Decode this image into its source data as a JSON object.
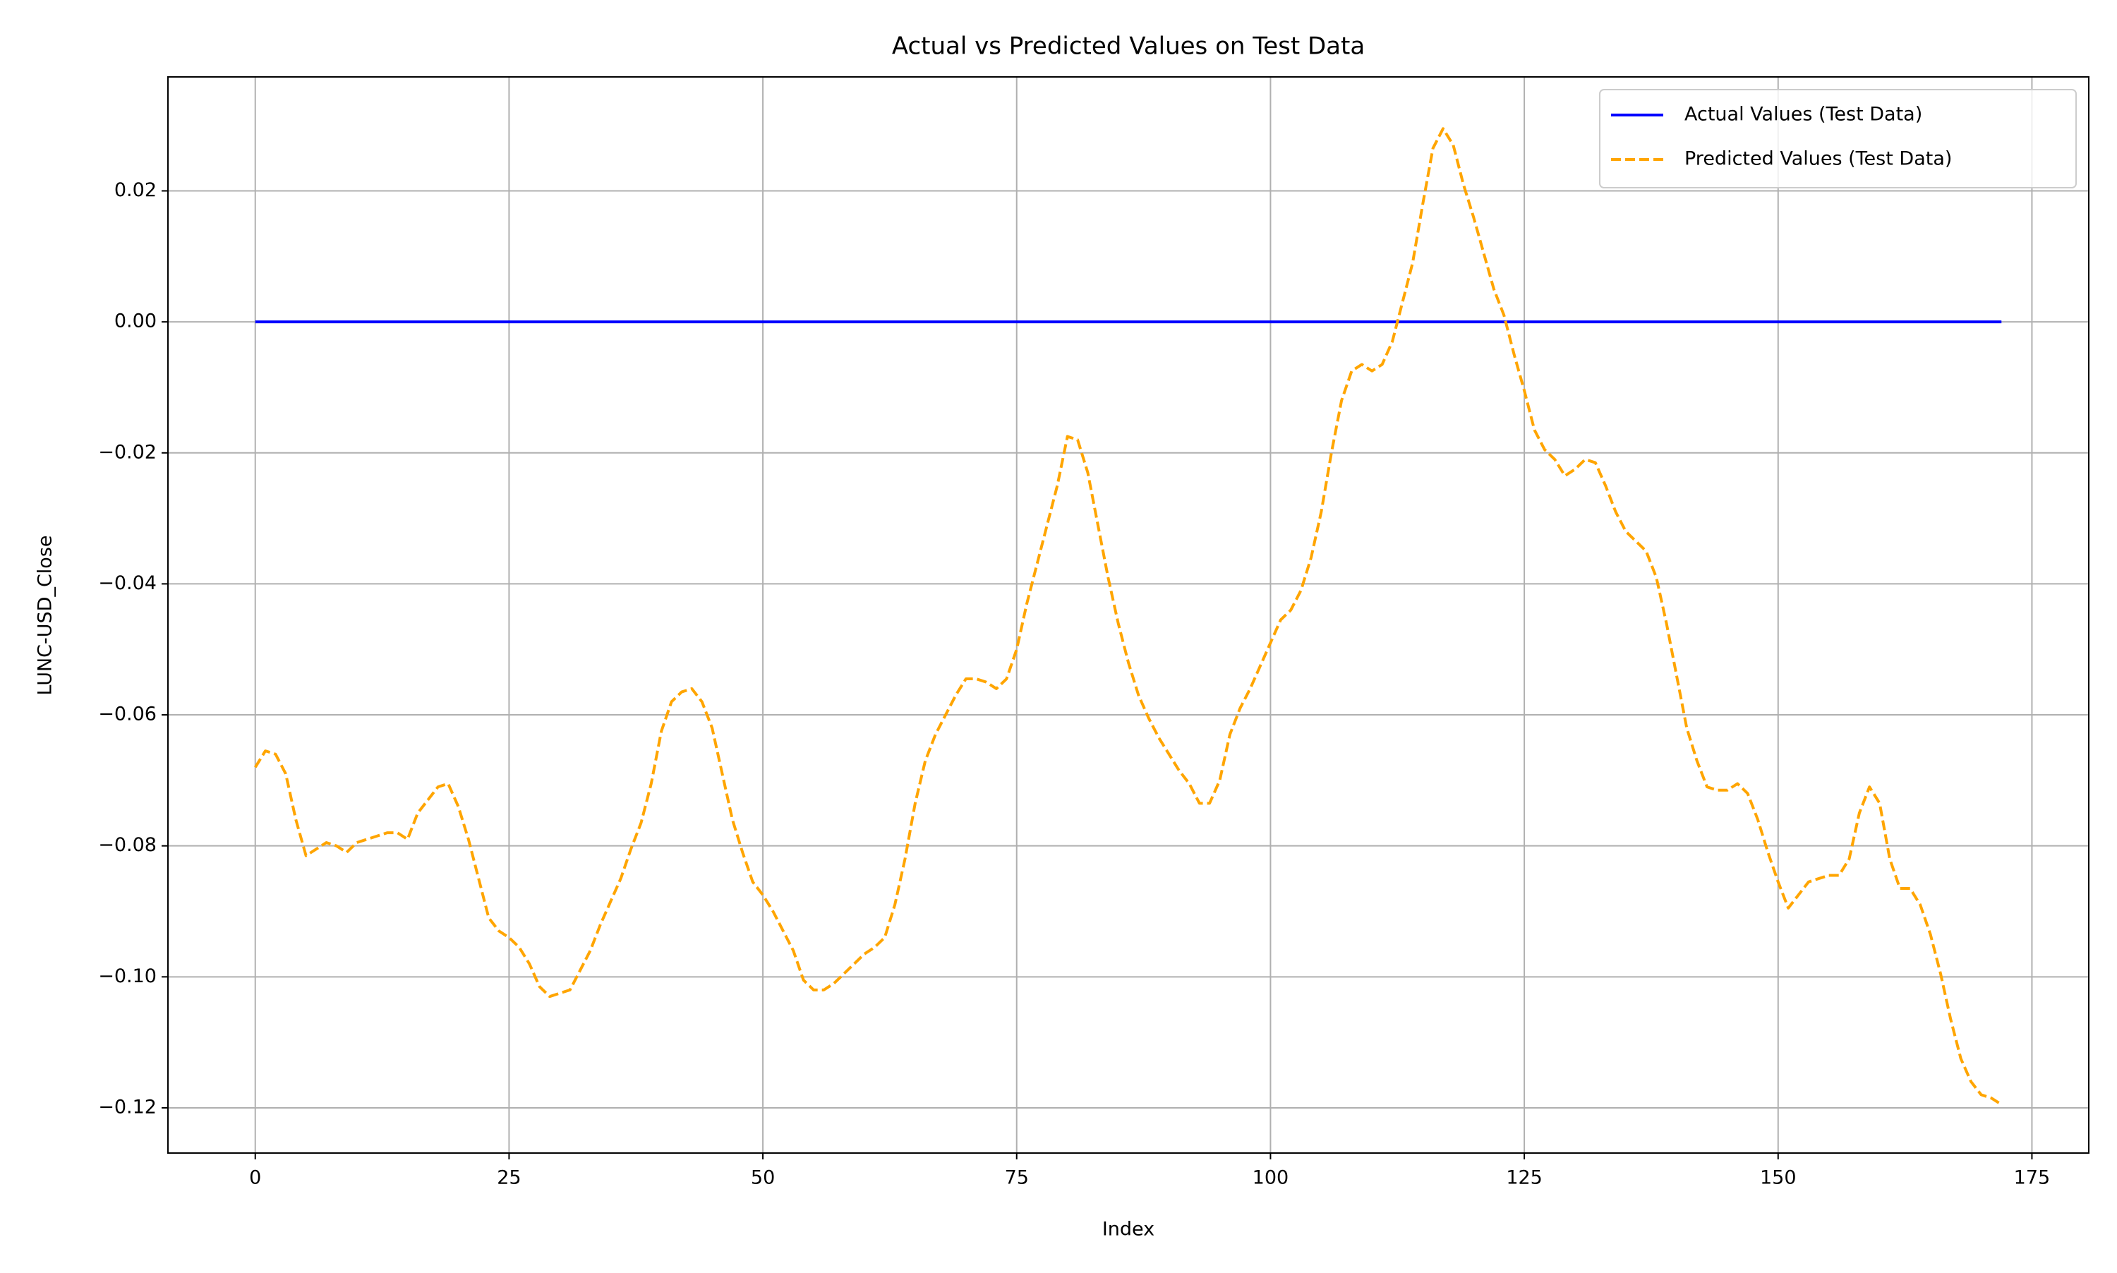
{
  "chart_data": {
    "type": "line",
    "title": "Actual vs Predicted Values on Test Data",
    "x_label": "Index",
    "y_label": "LUNC-USD_Close",
    "xlim": [
      -8.6,
      180.6
    ],
    "ylim": [
      -0.1269,
      0.0374
    ],
    "xticks": [
      0,
      25,
      50,
      75,
      100,
      125,
      150,
      175
    ],
    "yticks": [
      {
        "value": -0.12,
        "label": "−0.12"
      },
      {
        "value": -0.1,
        "label": "−0.10"
      },
      {
        "value": -0.08,
        "label": "−0.08"
      },
      {
        "value": -0.06,
        "label": "−0.06"
      },
      {
        "value": -0.04,
        "label": "−0.04"
      },
      {
        "value": -0.02,
        "label": "−0.02"
      },
      {
        "value": 0,
        "label": "0.00"
      },
      0.02
    ],
    "grid": true,
    "legend": "upper right",
    "x": [
      0,
      1,
      2,
      3,
      4,
      5,
      6,
      7,
      8,
      9,
      10,
      11,
      12,
      13,
      14,
      15,
      16,
      17,
      18,
      19,
      20,
      21,
      22,
      23,
      24,
      25,
      26,
      27,
      28,
      29,
      30,
      31,
      32,
      33,
      34,
      35,
      36,
      37,
      38,
      39,
      40,
      41,
      42,
      43,
      44,
      45,
      46,
      47,
      48,
      49,
      50,
      51,
      52,
      53,
      54,
      55,
      56,
      57,
      58,
      59,
      60,
      61,
      62,
      63,
      64,
      65,
      66,
      67,
      68,
      69,
      70,
      71,
      72,
      73,
      74,
      75,
      76,
      77,
      78,
      79,
      80,
      81,
      82,
      83,
      84,
      85,
      86,
      87,
      88,
      89,
      90,
      91,
      92,
      93,
      94,
      95,
      96,
      97,
      98,
      99,
      100,
      101,
      102,
      103,
      104,
      105,
      106,
      107,
      108,
      109,
      110,
      111,
      112,
      113,
      114,
      115,
      116,
      117,
      118,
      119,
      120,
      121,
      122,
      123,
      124,
      125,
      126,
      127,
      128,
      129,
      130,
      131,
      132,
      133,
      134,
      135,
      136,
      137,
      138,
      139,
      140,
      141,
      142,
      143,
      144,
      145,
      146,
      147,
      148,
      149,
      150,
      151,
      152,
      153,
      154,
      155,
      156,
      157,
      158,
      159,
      160,
      161,
      162,
      163,
      164,
      165,
      166,
      167,
      168,
      169,
      170,
      171,
      172
    ],
    "series": [
      {
        "name": "Actual Values (Test Data)",
        "color": "#0000ff",
        "linestyle": "solid",
        "values": [
          0,
          0,
          0,
          0,
          0,
          0,
          0,
          0,
          0,
          0,
          0,
          0,
          0,
          0,
          0,
          0,
          0,
          0,
          0,
          0,
          0,
          0,
          0,
          0,
          0,
          0,
          0,
          0,
          0,
          0,
          0,
          0,
          0,
          0,
          0,
          0,
          0,
          0,
          0,
          0,
          0,
          0,
          0,
          0,
          0,
          0,
          0,
          0,
          0,
          0,
          0,
          0,
          0,
          0,
          0,
          0,
          0,
          0,
          0,
          0,
          0,
          0,
          0,
          0,
          0,
          0,
          0,
          0,
          0,
          0,
          0,
          0,
          0,
          0,
          0,
          0,
          0,
          0,
          0,
          0,
          0,
          0,
          0,
          0,
          0,
          0,
          0,
          0,
          0,
          0,
          0,
          0,
          0,
          0,
          0,
          0,
          0,
          0,
          0,
          0,
          0,
          0,
          0,
          0,
          0,
          0,
          0,
          0,
          0,
          0,
          0,
          0,
          0,
          0,
          0,
          0,
          0,
          0,
          0,
          0,
          0,
          0,
          0,
          0,
          0,
          0,
          0,
          0,
          0,
          0,
          0,
          0,
          0,
          0,
          0,
          0,
          0,
          0,
          0,
          0,
          0,
          0,
          0,
          0,
          0,
          0,
          0,
          0,
          0,
          0,
          0,
          0,
          0,
          0,
          0,
          0,
          0,
          0,
          0,
          0,
          0,
          0,
          0,
          0,
          0,
          0,
          0,
          0,
          0,
          0,
          0,
          0,
          0
        ]
      },
      {
        "name": "Predicted Values (Test Data)",
        "color": "#ffa500",
        "linestyle": "dashed",
        "values": [
          -0.068,
          -0.0655,
          -0.066,
          -0.069,
          -0.076,
          -0.0815,
          -0.0805,
          -0.0795,
          -0.08,
          -0.081,
          -0.0795,
          -0.079,
          -0.0785,
          -0.078,
          -0.078,
          -0.079,
          -0.075,
          -0.073,
          -0.071,
          -0.0705,
          -0.074,
          -0.079,
          -0.085,
          -0.091,
          -0.093,
          -0.094,
          -0.0955,
          -0.098,
          -0.1015,
          -0.103,
          -0.1025,
          -0.102,
          -0.099,
          -0.096,
          -0.092,
          -0.0885,
          -0.085,
          -0.0805,
          -0.0765,
          -0.0705,
          -0.0625,
          -0.058,
          -0.0565,
          -0.056,
          -0.058,
          -0.062,
          -0.069,
          -0.076,
          -0.081,
          -0.0855,
          -0.0875,
          -0.09,
          -0.093,
          -0.096,
          -0.1005,
          -0.102,
          -0.102,
          -0.101,
          -0.0995,
          -0.098,
          -0.0965,
          -0.0955,
          -0.094,
          -0.089,
          -0.082,
          -0.0735,
          -0.067,
          -0.063,
          -0.06,
          -0.057,
          -0.0545,
          -0.0545,
          -0.055,
          -0.056,
          -0.0545,
          -0.05,
          -0.043,
          -0.037,
          -0.031,
          -0.025,
          -0.0175,
          -0.018,
          -0.023,
          -0.031,
          -0.039,
          -0.046,
          -0.052,
          -0.057,
          -0.0605,
          -0.0635,
          -0.066,
          -0.0685,
          -0.0705,
          -0.0735,
          -0.0735,
          -0.07,
          -0.063,
          -0.059,
          -0.056,
          -0.0525,
          -0.049,
          -0.0455,
          -0.044,
          -0.041,
          -0.036,
          -0.029,
          -0.02,
          -0.012,
          -0.0075,
          -0.0065,
          -0.0075,
          -0.0065,
          -0.003,
          0.003,
          0.009,
          0.018,
          0.0265,
          0.0295,
          0.027,
          0.021,
          0.016,
          0.0105,
          0.005,
          0.001,
          -0.005,
          -0.0105,
          -0.0165,
          -0.0195,
          -0.021,
          -0.0235,
          -0.0225,
          -0.021,
          -0.0215,
          -0.025,
          -0.029,
          -0.032,
          -0.0335,
          -0.035,
          -0.039,
          -0.046,
          -0.054,
          -0.062,
          -0.067,
          -0.071,
          -0.0715,
          -0.0715,
          -0.0705,
          -0.072,
          -0.076,
          -0.081,
          -0.0855,
          -0.0895,
          -0.0875,
          -0.0855,
          -0.085,
          -0.0845,
          -0.0845,
          -0.082,
          -0.075,
          -0.071,
          -0.0735,
          -0.082,
          -0.0865,
          -0.0865,
          -0.089,
          -0.0935,
          -0.0995,
          -0.1065,
          -0.1125,
          -0.116,
          -0.118,
          -0.1185,
          -0.1195
        ]
      }
    ]
  }
}
